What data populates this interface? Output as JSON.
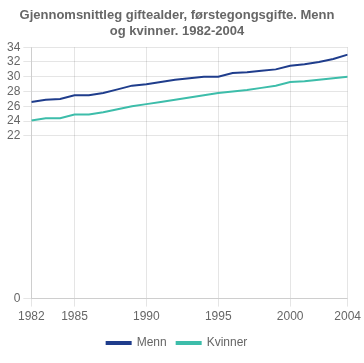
{
  "chart_data": {
    "type": "line",
    "title": "Gjennomsnittleg giftealder, førstegongsgifte. Menn og kvinner. 1982-2004",
    "x": [
      1982,
      1983,
      1984,
      1985,
      1986,
      1987,
      1988,
      1989,
      1990,
      1991,
      1992,
      1993,
      1994,
      1995,
      1996,
      1997,
      1998,
      1999,
      2000,
      2001,
      2002,
      2003,
      2004
    ],
    "series": [
      {
        "name": "Menn",
        "color": "#1f3d8c",
        "values": [
          26.6,
          26.9,
          27.0,
          27.5,
          27.5,
          27.8,
          28.3,
          28.8,
          29.0,
          29.3,
          29.6,
          29.8,
          30.0,
          30.0,
          30.5,
          30.6,
          30.8,
          31.0,
          31.5,
          31.7,
          32.0,
          32.4,
          33.0
        ]
      },
      {
        "name": "Kvinner",
        "color": "#3dbdaa",
        "values": [
          24.1,
          24.4,
          24.4,
          24.9,
          24.9,
          25.2,
          25.6,
          26.0,
          26.3,
          26.6,
          26.9,
          27.2,
          27.5,
          27.8,
          28.0,
          28.2,
          28.5,
          28.8,
          29.3,
          29.4,
          29.6,
          29.8,
          30.0
        ]
      }
    ],
    "xlim": [
      1982,
      2004
    ],
    "xticks": [
      1982,
      1985,
      1990,
      1995,
      2000,
      2004
    ],
    "ylim": [
      0,
      34
    ],
    "yticks": [
      0,
      22,
      24,
      26,
      28,
      30,
      32,
      34
    ],
    "grid": true,
    "legend": "bottom"
  }
}
